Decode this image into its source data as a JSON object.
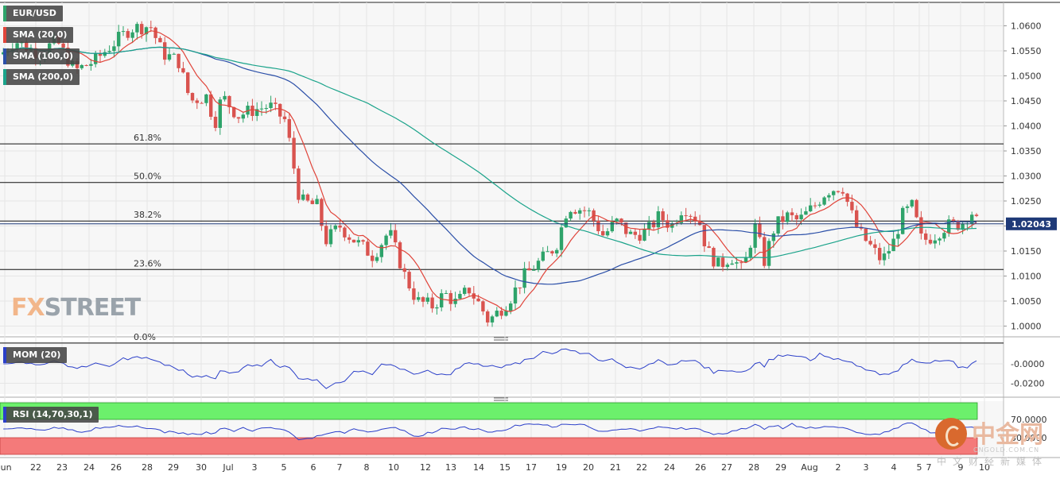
{
  "chart_data": {
    "type": "candlestick",
    "symbol": "EUR/USD",
    "price_axis": {
      "ticks": [
        "1.0600",
        "1.0550",
        "1.0500",
        "1.0450",
        "1.0400",
        "1.0350",
        "1.0300",
        "1.0250",
        "1.0200",
        "1.0150",
        "1.0100",
        "1.0050",
        "1.0000"
      ],
      "ylim": [
        0.9965,
        1.0618
      ]
    },
    "last_price": "1.02043",
    "time_axis": {
      "labels": [
        "Jun",
        "22",
        "23",
        "24",
        "26",
        "28",
        "29",
        "30",
        "Jul",
        "3",
        "5",
        "6",
        "7",
        "8",
        "10",
        "12",
        "13",
        "14",
        "15",
        "17",
        "19",
        "20",
        "21",
        "22",
        "24",
        "26",
        "27",
        "28",
        "29",
        "Aug",
        "2",
        "3",
        "4",
        "5",
        "7",
        "9",
        "10"
      ]
    },
    "fibonacci": [
      {
        "label": "61.8%",
        "value": 1.0364
      },
      {
        "label": "50.0%",
        "value": 1.0287
      },
      {
        "label": "38.2%",
        "value": 1.021
      },
      {
        "label": "23.6%",
        "value": 1.0113
      },
      {
        "label": "0.0%",
        "value": 0.9966
      }
    ],
    "indicators": {
      "sma20": {
        "name": "SMA (20,0)",
        "color": "#e0443a"
      },
      "sma100": {
        "name": "SMA (100,0)",
        "color": "#2b4fa8"
      },
      "sma200": {
        "name": "SMA (200,0)",
        "color": "#1aa38a"
      },
      "mom": {
        "name": "MOM (20)",
        "color": "#2b3fc9",
        "ticks": [
          "-0.0000",
          "-0.0200"
        ]
      },
      "rsi": {
        "name": "RSI (14,70,30,1)",
        "color": "#2b3fc9",
        "ticks": [
          "70.0000",
          "30.0000"
        ]
      }
    },
    "colors": {
      "up": "#2ea36a",
      "down": "#d9534f"
    }
  },
  "watermarks": {
    "fxstreet_prefix": "FX",
    "fxstreet_suffix": "STREET",
    "cngold_title": "中金网",
    "cngold_url": "CNGOLD.COM.CN",
    "cngold_subtitle": "中文财经新媒体"
  }
}
